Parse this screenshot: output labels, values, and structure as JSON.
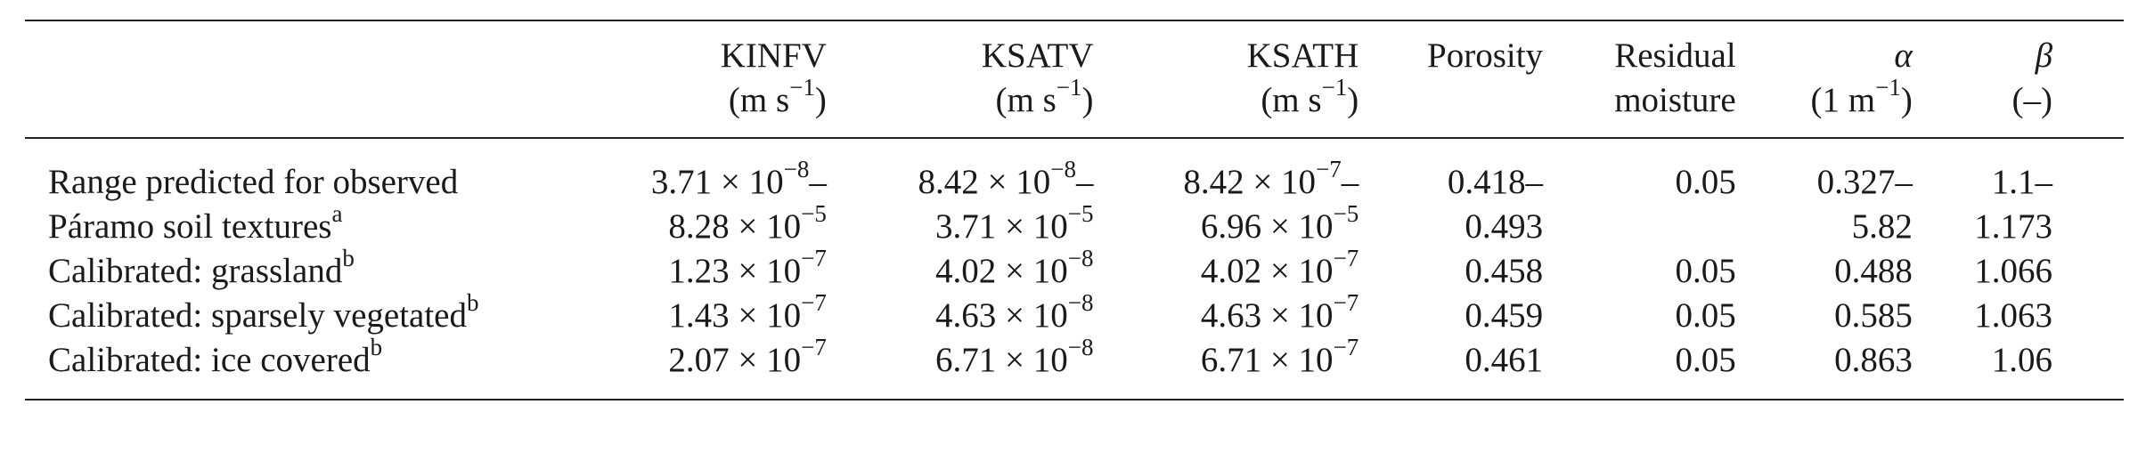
{
  "columns": [
    {
      "name": "KINFV",
      "unit": "(m s−1)"
    },
    {
      "name": "KSATV",
      "unit": "(m s−1)"
    },
    {
      "name": "KSATH",
      "unit": "(m s−1)"
    },
    {
      "name": "Porosity",
      "unit": ""
    },
    {
      "name": "Residual",
      "unit": "moisture"
    },
    {
      "name": "α",
      "unit": "(1 m−1)"
    },
    {
      "name": "β",
      "unit": "(–)"
    }
  ],
  "rows": [
    {
      "label": "Range predicted for observed",
      "label_sup": "",
      "cells": [
        "3.71 × 10−8–",
        "8.42 × 10−8–",
        "8.42 × 10−7–",
        "0.418–",
        "0.05",
        "0.327–",
        "1.1–"
      ]
    },
    {
      "label": "Páramo soil textures",
      "label_sup": "a",
      "cells": [
        "8.28 × 10−5",
        "3.71 × 10−5",
        "6.96 × 10−5",
        "0.493",
        "",
        "5.82",
        "1.173"
      ]
    },
    {
      "label": "Calibrated: grassland",
      "label_sup": "b",
      "cells": [
        "1.23 × 10−7",
        "4.02 × 10−8",
        "4.02 × 10−7",
        "0.458",
        "0.05",
        "0.488",
        "1.066"
      ]
    },
    {
      "label": "Calibrated: sparsely vegetated",
      "label_sup": "b",
      "cells": [
        "1.43 × 10−7",
        "4.63 × 10−8",
        "4.63 × 10−7",
        "0.459",
        "0.05",
        "0.585",
        "1.063"
      ]
    },
    {
      "label": "Calibrated: ice covered",
      "label_sup": "b",
      "cells": [
        "2.07 × 10−7",
        "6.71 × 10−8",
        "6.71 × 10−7",
        "0.461",
        "0.05",
        "0.863",
        "1.06"
      ]
    }
  ],
  "sci": {
    "r0": [
      {
        "m": "3.71",
        "e": "−8",
        "s": "–"
      },
      {
        "m": "8.42",
        "e": "−8",
        "s": "–"
      },
      {
        "m": "8.42",
        "e": "−7",
        "s": "–"
      }
    ],
    "r1": [
      {
        "m": "8.28",
        "e": "−5"
      },
      {
        "m": "3.71",
        "e": "−5"
      },
      {
        "m": "6.96",
        "e": "−5"
      }
    ],
    "r2": [
      {
        "m": "1.23",
        "e": "−7"
      },
      {
        "m": "4.02",
        "e": "−8"
      },
      {
        "m": "4.02",
        "e": "−7"
      }
    ],
    "r3": [
      {
        "m": "1.43",
        "e": "−7"
      },
      {
        "m": "4.63",
        "e": "−8"
      },
      {
        "m": "4.63",
        "e": "−7"
      }
    ],
    "r4": [
      {
        "m": "2.07",
        "e": "−7"
      },
      {
        "m": "6.71",
        "e": "−8"
      },
      {
        "m": "6.71",
        "e": "−7"
      }
    ]
  },
  "units": {
    "ms": "(m s",
    "ms_exp": "−1",
    "ms_close": ")",
    "alpha_open": "(1 m",
    "alpha_exp": "−1",
    "alpha_close": ")"
  },
  "times_ten": "× 10"
}
